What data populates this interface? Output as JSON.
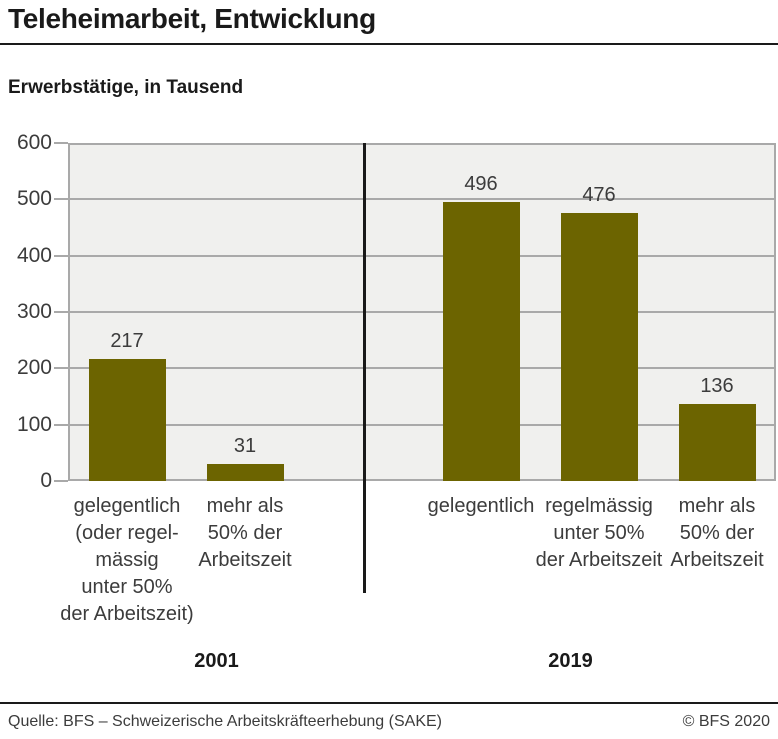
{
  "header": {
    "title": "Teleheimarbeit, Entwicklung",
    "subtitle": "Erwerbstätige, in Tausend"
  },
  "footer": {
    "source": "Quelle: BFS – Schweizerische Arbeitskräfteerhebung (SAKE)",
    "copyright": "© BFS 2020"
  },
  "colors": {
    "bar": "#6c6400",
    "plot_background": "#f0f0ee",
    "grid": "#a9a9a9",
    "divider": "#1a1a1a",
    "text": "#3c3c3c"
  },
  "chart_data": {
    "type": "bar",
    "title": "Teleheimarbeit, Entwicklung",
    "subtitle": "Erwerbstätige, in Tausend",
    "ylabel": "Erwerbstätige, in Tausend",
    "ylim": [
      0,
      600
    ],
    "yticks": [
      0,
      100,
      200,
      300,
      400,
      500,
      600
    ],
    "grid": true,
    "legend": false,
    "bar_color": "#6c6400",
    "groups": [
      {
        "year": "2001",
        "bars": [
          {
            "category": "gelegentlich (oder regelmässig unter 50% der Arbeitszeit)",
            "category_lines": [
              "gelegentlich",
              "(oder regel-",
              "mässig",
              "unter 50%",
              "der Arbeitszeit)"
            ],
            "value": 217
          },
          {
            "category": "mehr als 50% der Arbeitszeit",
            "category_lines": [
              "mehr als",
              "50% der",
              "Arbeitszeit"
            ],
            "value": 31
          }
        ]
      },
      {
        "year": "2019",
        "bars": [
          {
            "category": "gelegentlich",
            "category_lines": [
              "gelegentlich"
            ],
            "value": 496
          },
          {
            "category": "regelmässig unter 50% der Arbeitszeit",
            "category_lines": [
              "regelmässig",
              "unter 50%",
              "der Arbeitszeit"
            ],
            "value": 476
          },
          {
            "category": "mehr als 50% der Arbeitszeit",
            "category_lines": [
              "mehr als",
              "50% der",
              "Arbeitszeit"
            ],
            "value": 136
          }
        ]
      }
    ]
  }
}
